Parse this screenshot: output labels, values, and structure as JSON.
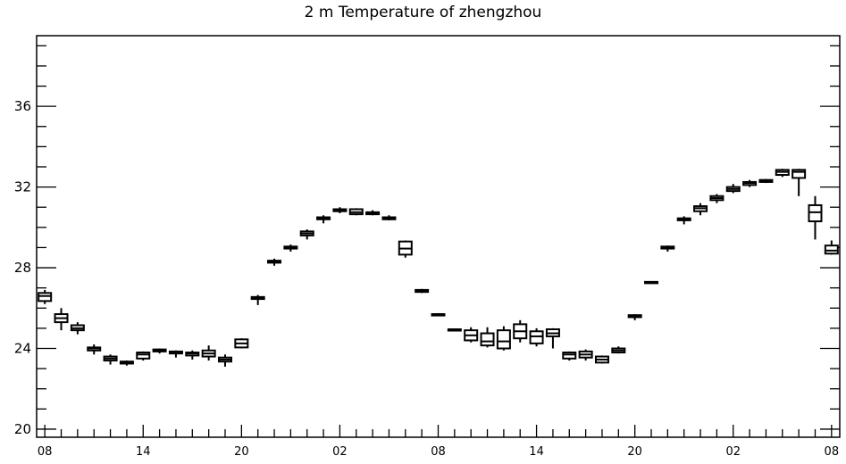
{
  "chart_data": {
    "type": "box",
    "title": "2 m Temperature of zhengzhou",
    "xlabel": "",
    "ylabel": "",
    "ylim": [
      19.6,
      39.5
    ],
    "yticks": [
      20,
      24,
      28,
      32,
      36
    ],
    "ytick_labels": [
      "20",
      "24",
      "28",
      "32",
      "36"
    ],
    "xlim": [
      -0.5,
      48.5
    ],
    "xticks": [
      0,
      6,
      12,
      18,
      24,
      30,
      36,
      42,
      48
    ],
    "xtick_labels": [
      "08",
      "14",
      "20",
      "02",
      "08",
      "14",
      "20",
      "02",
      "08"
    ],
    "x_step_hours": 1,
    "grid": false,
    "legend": "none",
    "boxes": [
      {
        "x": 0,
        "min": 26.2,
        "q1": 26.35,
        "median": 26.6,
        "q3": 26.75,
        "max": 26.9
      },
      {
        "x": 1,
        "min": 24.9,
        "q1": 25.3,
        "median": 25.5,
        "q3": 25.7,
        "max": 26.0
      },
      {
        "x": 2,
        "min": 24.7,
        "q1": 24.9,
        "median": 25.0,
        "q3": 25.15,
        "max": 25.3
      },
      {
        "x": 3,
        "min": 23.7,
        "q1": 23.9,
        "median": 24.0,
        "q3": 24.05,
        "max": 24.2
      },
      {
        "x": 4,
        "min": 23.2,
        "q1": 23.4,
        "median": 23.5,
        "q3": 23.6,
        "max": 23.7
      },
      {
        "x": 5,
        "min": 23.15,
        "q1": 23.25,
        "median": 23.3,
        "q3": 23.35,
        "max": 23.4
      },
      {
        "x": 6,
        "min": 23.4,
        "q1": 23.5,
        "median": 23.7,
        "q3": 23.8,
        "max": 23.85
      },
      {
        "x": 7,
        "min": 23.75,
        "q1": 23.85,
        "median": 23.9,
        "q3": 23.95,
        "max": 24.0
      },
      {
        "x": 8,
        "min": 23.55,
        "q1": 23.75,
        "median": 23.8,
        "q3": 23.85,
        "max": 23.9
      },
      {
        "x": 9,
        "min": 23.45,
        "q1": 23.65,
        "median": 23.75,
        "q3": 23.8,
        "max": 23.9
      },
      {
        "x": 10,
        "min": 23.4,
        "q1": 23.6,
        "median": 23.75,
        "q3": 23.9,
        "max": 24.15
      },
      {
        "x": 11,
        "min": 23.1,
        "q1": 23.35,
        "median": 23.45,
        "q3": 23.55,
        "max": 23.7
      },
      {
        "x": 12,
        "min": 24.0,
        "q1": 24.05,
        "median": 24.25,
        "q3": 24.45,
        "max": 24.5
      },
      {
        "x": 13,
        "min": 26.15,
        "q1": 26.45,
        "median": 26.5,
        "q3": 26.55,
        "max": 26.65
      },
      {
        "x": 14,
        "min": 28.1,
        "q1": 28.25,
        "median": 28.3,
        "q3": 28.35,
        "max": 28.45
      },
      {
        "x": 15,
        "min": 28.8,
        "q1": 28.95,
        "median": 29.0,
        "q3": 29.05,
        "max": 29.15
      },
      {
        "x": 16,
        "min": 29.4,
        "q1": 29.6,
        "median": 29.7,
        "q3": 29.8,
        "max": 29.9
      },
      {
        "x": 17,
        "min": 30.2,
        "q1": 30.4,
        "median": 30.45,
        "q3": 30.5,
        "max": 30.6
      },
      {
        "x": 18,
        "min": 30.7,
        "q1": 30.8,
        "median": 30.85,
        "q3": 30.9,
        "max": 31.0
      },
      {
        "x": 19,
        "min": 30.6,
        "q1": 30.65,
        "median": 30.75,
        "q3": 30.9,
        "max": 30.95
      },
      {
        "x": 20,
        "min": 30.6,
        "q1": 30.65,
        "median": 30.7,
        "q3": 30.75,
        "max": 30.85
      },
      {
        "x": 21,
        "min": 30.35,
        "q1": 30.4,
        "median": 30.45,
        "q3": 30.5,
        "max": 30.6
      },
      {
        "x": 22,
        "min": 28.5,
        "q1": 28.65,
        "median": 28.95,
        "q3": 29.3,
        "max": 29.35
      },
      {
        "x": 23,
        "min": 26.75,
        "q1": 26.8,
        "median": 26.85,
        "q3": 26.9,
        "max": 26.95
      },
      {
        "x": 24,
        "min": 25.6,
        "q1": 25.65,
        "median": 25.7,
        "q3": 25.7,
        "max": 25.75
      },
      {
        "x": 25,
        "min": 24.85,
        "q1": 24.9,
        "median": 24.9,
        "q3": 24.95,
        "max": 24.95
      },
      {
        "x": 26,
        "min": 24.3,
        "q1": 24.4,
        "median": 24.65,
        "q3": 24.9,
        "max": 25.05
      },
      {
        "x": 27,
        "min": 24.05,
        "q1": 24.15,
        "median": 24.35,
        "q3": 24.75,
        "max": 25.05
      },
      {
        "x": 28,
        "min": 23.9,
        "q1": 24.0,
        "median": 24.35,
        "q3": 24.9,
        "max": 25.1
      },
      {
        "x": 29,
        "min": 24.3,
        "q1": 24.5,
        "median": 24.85,
        "q3": 25.2,
        "max": 25.4
      },
      {
        "x": 30,
        "min": 24.1,
        "q1": 24.25,
        "median": 24.6,
        "q3": 24.85,
        "max": 25.0
      },
      {
        "x": 31,
        "min": 24.0,
        "q1": 24.6,
        "median": 24.75,
        "q3": 24.95,
        "max": 25.0
      },
      {
        "x": 32,
        "min": 23.4,
        "q1": 23.5,
        "median": 23.7,
        "q3": 23.8,
        "max": 23.85
      },
      {
        "x": 33,
        "min": 23.4,
        "q1": 23.55,
        "median": 23.7,
        "q3": 23.85,
        "max": 23.95
      },
      {
        "x": 34,
        "min": 23.25,
        "q1": 23.3,
        "median": 23.45,
        "q3": 23.6,
        "max": 23.65
      },
      {
        "x": 35,
        "min": 23.75,
        "q1": 23.8,
        "median": 23.9,
        "q3": 24.0,
        "max": 24.1
      },
      {
        "x": 36,
        "min": 25.4,
        "q1": 25.55,
        "median": 25.6,
        "q3": 25.65,
        "max": 25.7
      },
      {
        "x": 37,
        "min": 27.2,
        "q1": 27.25,
        "median": 27.25,
        "q3": 27.3,
        "max": 27.3
      },
      {
        "x": 38,
        "min": 28.8,
        "q1": 28.95,
        "median": 29.0,
        "q3": 29.05,
        "max": 29.1
      },
      {
        "x": 39,
        "min": 30.15,
        "q1": 30.35,
        "median": 30.4,
        "q3": 30.45,
        "max": 30.55
      },
      {
        "x": 40,
        "min": 30.6,
        "q1": 30.8,
        "median": 30.95,
        "q3": 31.05,
        "max": 31.2
      },
      {
        "x": 41,
        "min": 31.2,
        "q1": 31.35,
        "median": 31.45,
        "q3": 31.55,
        "max": 31.65
      },
      {
        "x": 42,
        "min": 31.7,
        "q1": 31.8,
        "median": 31.9,
        "q3": 32.0,
        "max": 32.15
      },
      {
        "x": 43,
        "min": 32.0,
        "q1": 32.1,
        "median": 32.2,
        "q3": 32.25,
        "max": 32.35
      },
      {
        "x": 44,
        "min": 32.2,
        "q1": 32.25,
        "median": 32.3,
        "q3": 32.35,
        "max": 32.4
      },
      {
        "x": 45,
        "min": 32.5,
        "q1": 32.6,
        "median": 32.75,
        "q3": 32.85,
        "max": 32.9
      },
      {
        "x": 46,
        "min": 31.55,
        "q1": 32.45,
        "median": 32.75,
        "q3": 32.85,
        "max": 32.9
      },
      {
        "x": 47,
        "min": 29.4,
        "q1": 30.3,
        "median": 30.75,
        "q3": 31.1,
        "max": 31.55
      },
      {
        "x": 48,
        "min": 28.65,
        "q1": 28.7,
        "median": 28.85,
        "q3": 29.1,
        "max": 29.35
      }
    ]
  }
}
